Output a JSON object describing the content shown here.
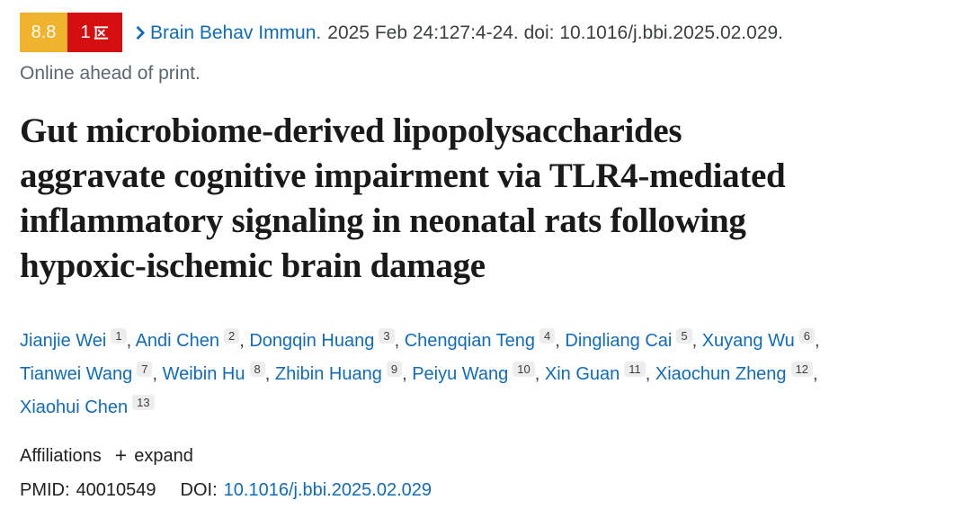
{
  "badges": {
    "impact_factor": "8.8",
    "cas_division": "1区",
    "cas_division_number": "1"
  },
  "citation": {
    "journal": "Brain Behav Immun.",
    "details": "2025 Feb 24:127:4-24. doi: 10.1016/j.bbi.2025.02.029.",
    "status": "Online ahead of print."
  },
  "title": {
    "full": "Gut microbiome-derived lipopolysaccharides aggravate cognitive impairment via TLR4-mediated inflammatory signaling in neonatal rats following hypoxic-ischemic brain damage",
    "lines": [
      "Gut microbiome-derived lipopolysaccharides",
      "aggravate cognitive impairment via TLR4-mediated",
      "inflammatory signaling in neonatal rats following",
      "hypoxic-ischemic brain damage"
    ]
  },
  "authors": {
    "lines": [
      [
        {
          "name": "Jianjie Wei",
          "sup": "1",
          "comma": true
        },
        {
          "name": "Andi Chen",
          "sup": "2",
          "comma": true
        },
        {
          "name": "Dongqin Huang",
          "sup": "3",
          "comma": true
        },
        {
          "name": "Chengqian Teng",
          "sup": "4",
          "comma": true
        },
        {
          "name": "Dingliang Cai",
          "sup": "5",
          "comma": true
        },
        {
          "name": "Xuyang Wu",
          "sup": "6",
          "comma": true
        }
      ],
      [
        {
          "name": "Tianwei Wang",
          "sup": "7",
          "comma": true
        },
        {
          "name": "Weibin Hu",
          "sup": "8",
          "comma": true
        },
        {
          "name": "Zhibin Huang",
          "sup": "9",
          "comma": true
        },
        {
          "name": "Peiyu Wang",
          "sup": "10",
          "comma": true
        },
        {
          "name": "Xin Guan",
          "sup": "11",
          "comma": true
        },
        {
          "name": "Xiaochun Zheng",
          "sup": "12",
          "comma": true
        }
      ],
      [
        {
          "name": "Xiaohui Chen",
          "sup": "13",
          "comma": false
        }
      ]
    ]
  },
  "affiliations": {
    "label": "Affiliations",
    "plus_icon": "+",
    "expand_label": "expand"
  },
  "identifiers": {
    "pmid_label": "PMID:",
    "pmid": "40010549",
    "doi_label": "DOI:",
    "doi_link": "10.1016/j.bbi.2025.02.029"
  },
  "colors": {
    "badge_yellow": "#F0B32E",
    "badge_red": "#D50F0F",
    "link_blue": "#0F6CBD",
    "text_dark": "#212121",
    "text_body": "#3C4043",
    "text_muted": "#5B6770",
    "sup_bg": "#EDEDED",
    "title_color": "#1A1A1A"
  }
}
